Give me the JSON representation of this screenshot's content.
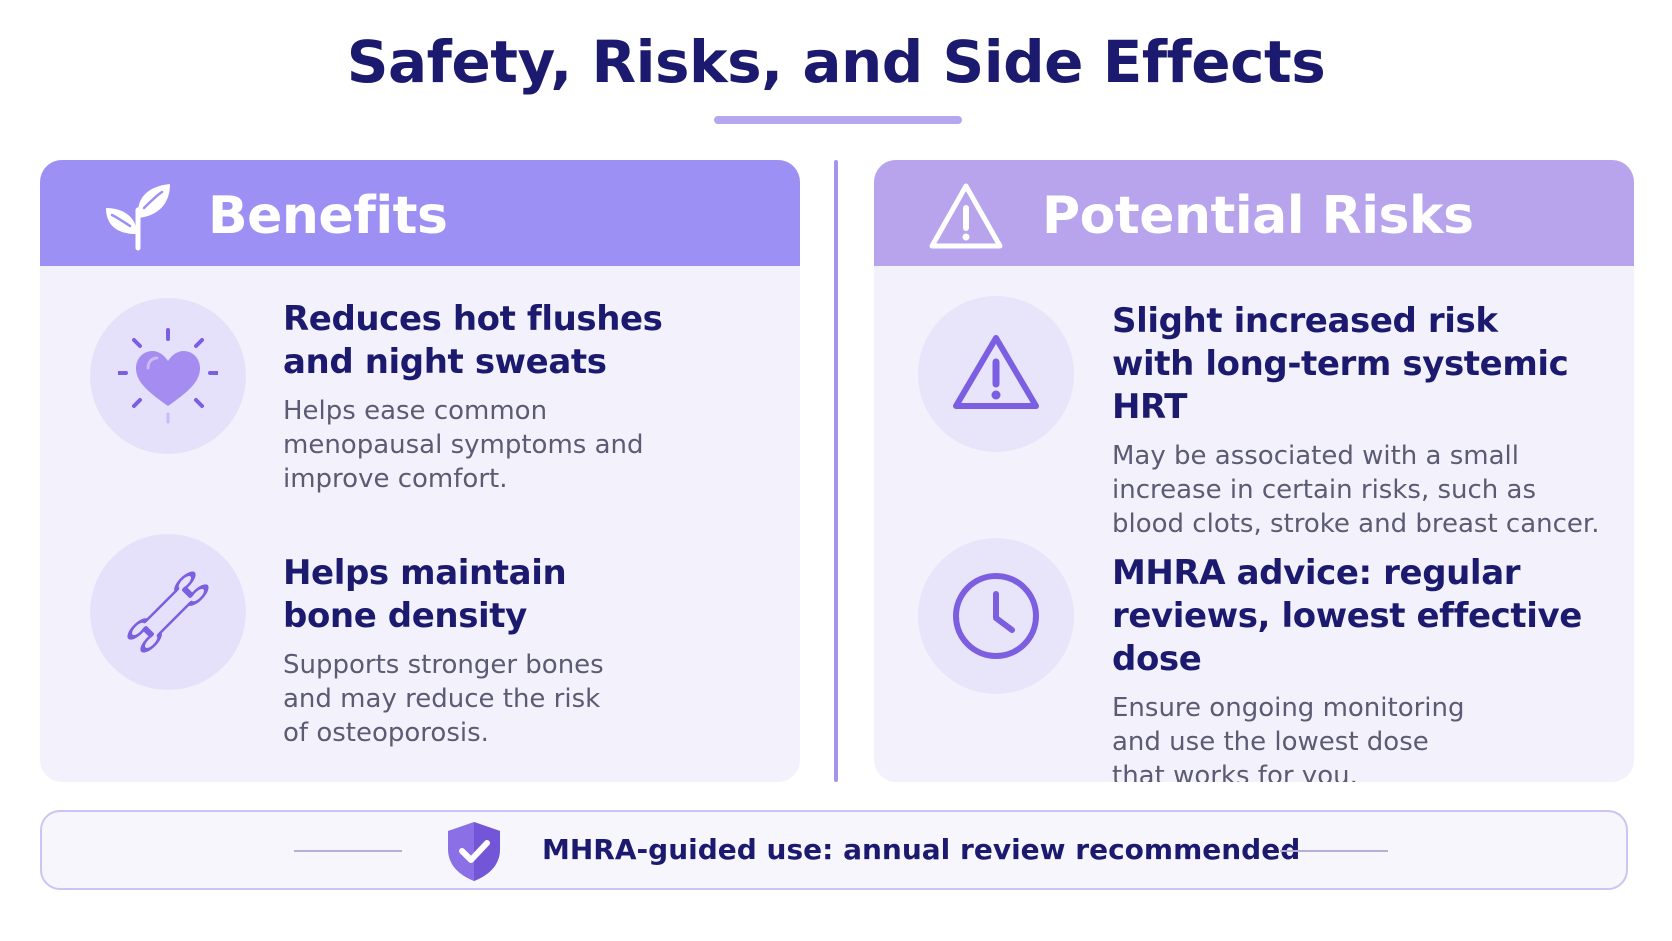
{
  "page": {
    "title": "Safety, Risks, and Side Effects"
  },
  "benefits": {
    "header_title": "Benefits",
    "header_icon": "leaf-sprout-icon",
    "items": [
      {
        "icon": "heart-sparkle-icon",
        "title": "Reduces hot flushes\nand night sweats",
        "description": "Helps ease common\nmenopausal symptoms and\nimprove comfort."
      },
      {
        "icon": "bone-icon",
        "title": "Helps maintain\nbone density",
        "description": "Supports stronger bones\nand may reduce the risk\nof osteoporosis."
      }
    ]
  },
  "risks": {
    "header_title": "Potential Risks",
    "header_icon": "warning-triangle-icon",
    "items": [
      {
        "icon": "warning-triangle-icon",
        "title": "Slight increased risk\nwith long-term systemic HRT",
        "description": "May be associated with a small\nincrease in certain risks, such as\nblood clots, stroke and breast cancer."
      },
      {
        "icon": "clock-icon",
        "title": "MHRA advice: regular\nreviews, lowest effective dose",
        "description": "Ensure ongoing monitoring\nand use the lowest dose\nthat works for you."
      }
    ]
  },
  "footer": {
    "icon": "shield-check-icon",
    "text": "MHRA-guided use: annual review recommended"
  },
  "colors": {
    "title_navy": "#1c1a6e",
    "benefits_header": "#9d90f4",
    "risks_header": "#b7a4ec",
    "panel_background": "#f3f2fc",
    "icon_purple": "#7b5fe0",
    "icon_circle": "#e6e1fb"
  }
}
